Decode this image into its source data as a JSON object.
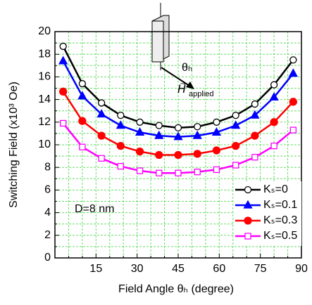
{
  "chart_data": {
    "type": "line",
    "xlabel": "Field Angle θₕ (degree)",
    "ylabel": "Switching Field (x10³ Oe)",
    "annotations": [
      "D=8 nm",
      "θₕ",
      "H⃗",
      "applied"
    ],
    "x": [
      3,
      10,
      17,
      24,
      31,
      38,
      45,
      52,
      59,
      66,
      73,
      80,
      87
    ],
    "series": [
      {
        "name": "Kₛ=0",
        "color": "#000000",
        "marker": "circle-open",
        "values": [
          18.7,
          15.4,
          13.7,
          12.6,
          12.0,
          11.7,
          11.5,
          11.6,
          12.0,
          12.6,
          13.6,
          15.3,
          17.5
        ]
      },
      {
        "name": "Kₛ=0.1",
        "color": "#0000ff",
        "marker": "triangle",
        "values": [
          17.4,
          14.3,
          12.7,
          11.7,
          11.1,
          10.8,
          10.7,
          10.8,
          11.1,
          11.7,
          12.6,
          14.2,
          16.3
        ]
      },
      {
        "name": "Kₛ=0.3",
        "color": "#ff0000",
        "marker": "circle",
        "values": [
          14.7,
          12.1,
          10.8,
          9.9,
          9.4,
          9.1,
          9.1,
          9.2,
          9.5,
          9.9,
          10.8,
          12.0,
          13.8
        ]
      },
      {
        "name": "Kₛ=0.5",
        "color": "#ff00ff",
        "marker": "square-open",
        "values": [
          11.9,
          9.8,
          8.8,
          8.1,
          7.7,
          7.5,
          7.5,
          7.6,
          7.8,
          8.2,
          8.9,
          9.9,
          11.3
        ]
      }
    ],
    "xlim": [
      0,
      90
    ],
    "xticks": [
      15,
      30,
      45,
      60,
      75,
      90
    ],
    "minor_xticks": [
      5,
      10,
      20,
      25,
      35,
      40,
      50,
      55,
      65,
      70,
      80,
      85
    ],
    "ylim": [
      0,
      20
    ],
    "yticks": [
      0,
      2,
      4,
      6,
      8,
      10,
      12,
      14,
      16,
      18,
      20
    ],
    "minor_yticks": [
      1,
      3,
      5,
      7,
      9,
      11,
      13,
      15,
      17,
      19
    ],
    "grid": true,
    "grid_color": "#66dd66",
    "legend": "lower right"
  }
}
